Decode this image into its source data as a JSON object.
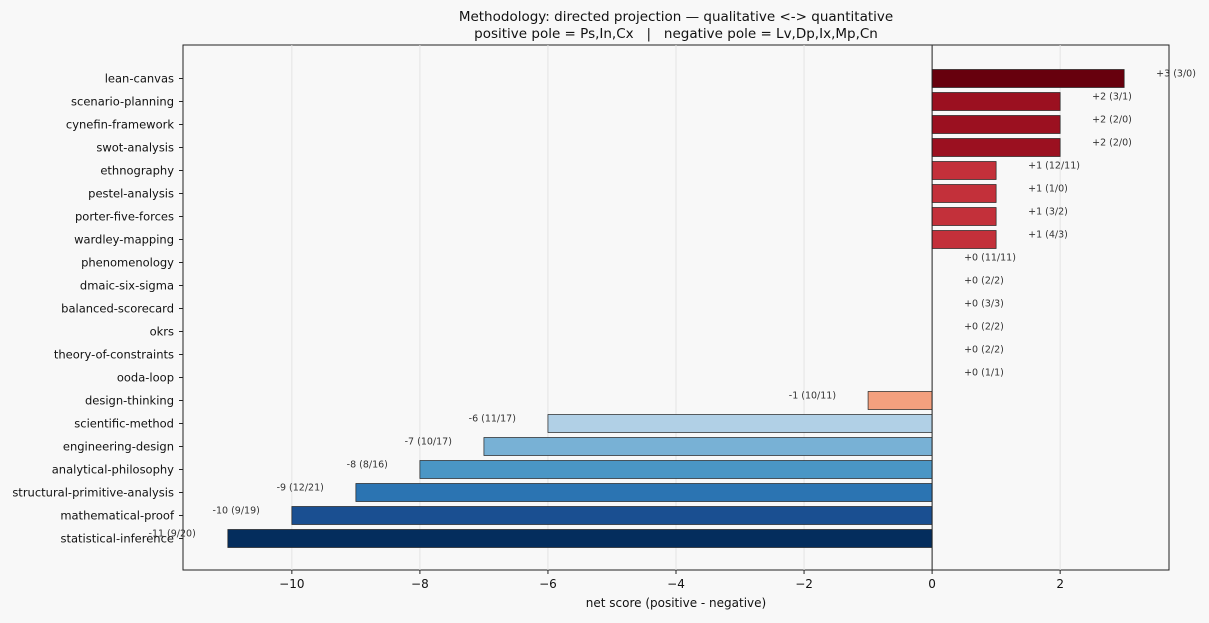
{
  "chart_data": {
    "type": "bar",
    "orientation": "horizontal",
    "title": "Methodology: directed projection — qualitative <-> quantitative",
    "subtitle": "positive pole = Ps,In,Cx   |   negative pole = Lv,Dp,Ix,Mp,Cn",
    "xlabel": "net score (positive - negative)",
    "ylabel": "",
    "xlim": [
      -11.7,
      3.7
    ],
    "xticks": [
      -10,
      -8,
      -6,
      -4,
      -2,
      0,
      2
    ],
    "xtick_labels": [
      "−10",
      "−8",
      "−6",
      "−4",
      "−2",
      "0",
      "2"
    ],
    "grid": "vertical",
    "zero_line": true,
    "categories": [
      "lean-canvas",
      "scenario-planning",
      "cynefin-framework",
      "swot-analysis",
      "ethnography",
      "pestel-analysis",
      "porter-five-forces",
      "wardley-mapping",
      "phenomenology",
      "dmaic-six-sigma",
      "balanced-scorecard",
      "okrs",
      "theory-of-constraints",
      "ooda-loop",
      "design-thinking",
      "scientific-method",
      "engineering-design",
      "analytical-philosophy",
      "structural-primitive-analysis",
      "mathematical-proof",
      "statistical-inference"
    ],
    "values": [
      3,
      2,
      2,
      2,
      1,
      1,
      1,
      1,
      0,
      0,
      0,
      0,
      0,
      0,
      -1,
      -6,
      -7,
      -8,
      -9,
      -10,
      -11
    ],
    "data_labels": [
      "+3 (3/0)",
      "+2 (3/1)",
      "+2 (2/0)",
      "+2 (2/0)",
      "+1 (12/11)",
      "+1 (1/0)",
      "+1 (3/2)",
      "+1 (4/3)",
      "+0 (11/11)",
      "+0 (2/2)",
      "+0 (3/3)",
      "+0 (2/2)",
      "+0 (2/2)",
      "+0 (1/1)",
      "-1 (10/11)",
      "-6 (11/17)",
      "-7 (10/17)",
      "-8 (8/16)",
      "-9 (12/21)",
      "-10 (9/19)",
      "-11 (9/20)"
    ],
    "colors": [
      "#67000d",
      "#9b1020",
      "#9b1020",
      "#9b1020",
      "#c3303a",
      "#c3303a",
      "#c3303a",
      "#c3303a",
      "#f7f7f7",
      "#f7f7f7",
      "#f7f7f7",
      "#f7f7f7",
      "#f7f7f7",
      "#f7f7f7",
      "#f4a07e",
      "#b1d0e6",
      "#78b1d5",
      "#4a96c5",
      "#2b74b2",
      "#1a4f91",
      "#042d5d"
    ]
  }
}
